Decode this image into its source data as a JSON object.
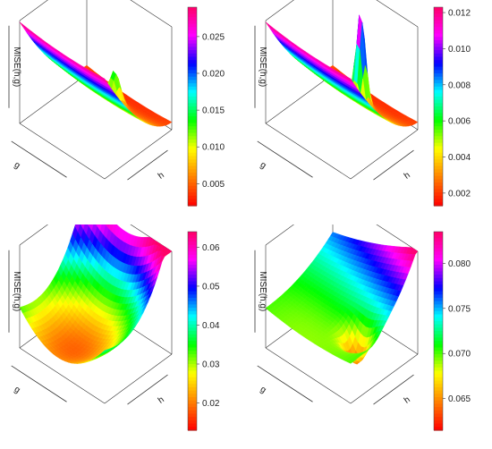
{
  "chart_data": [
    {
      "type": "surface3d",
      "panel": "top-left",
      "xlabel": "g",
      "ylabel": "h",
      "zlabel": "MISE(h,g)",
      "colorbar": {
        "ticks": [
          "0.005",
          "0.010",
          "0.015",
          "0.020",
          "0.025"
        ],
        "tick_values": [
          0.005,
          0.01,
          0.015,
          0.02,
          0.025
        ],
        "range": [
          0.002,
          0.029
        ]
      },
      "surface": {
        "kind": "slope-valley",
        "peak": "narrow-spike",
        "peak_height": 0.35
      }
    },
    {
      "type": "surface3d",
      "panel": "top-right",
      "xlabel": "g",
      "ylabel": "h",
      "zlabel": "MISE(h,g)",
      "colorbar": {
        "ticks": [
          "0.002",
          "0.004",
          "0.006",
          "0.008",
          "0.010",
          "0.012"
        ],
        "tick_values": [
          0.002,
          0.004,
          0.006,
          0.008,
          0.01,
          0.012
        ],
        "range": [
          0.0013,
          0.0123
        ]
      },
      "surface": {
        "kind": "slope-valley",
        "peak": "tall-spike",
        "peak_height": 1.0
      }
    },
    {
      "type": "surface3d",
      "panel": "bottom-left",
      "xlabel": "g",
      "ylabel": "h",
      "zlabel": "MISE(h,g)",
      "colorbar": {
        "ticks": [
          "0.02",
          "0.03",
          "0.04",
          "0.05",
          "0.06"
        ],
        "tick_values": [
          0.02,
          0.03,
          0.04,
          0.05,
          0.06
        ],
        "range": [
          0.013,
          0.064
        ]
      },
      "surface": {
        "kind": "bowl-rising-h",
        "peak": "none"
      }
    },
    {
      "type": "surface3d",
      "panel": "bottom-right",
      "xlabel": "g",
      "ylabel": "h",
      "zlabel": "MISE(h,g)",
      "colorbar": {
        "ticks": [
          "0.065",
          "0.070",
          "0.075",
          "0.080"
        ],
        "tick_values": [
          0.065,
          0.07,
          0.075,
          0.08
        ],
        "range": [
          0.0615,
          0.0835
        ]
      },
      "surface": {
        "kind": "saddle-rising-h",
        "peak": "none"
      }
    }
  ],
  "colors": {
    "scale": [
      "#ff0000",
      "#ff8000",
      "#ffff00",
      "#00ff00",
      "#00ffff",
      "#0000ff",
      "#ff00ff",
      "#ff0066"
    ],
    "box": "#333333"
  }
}
